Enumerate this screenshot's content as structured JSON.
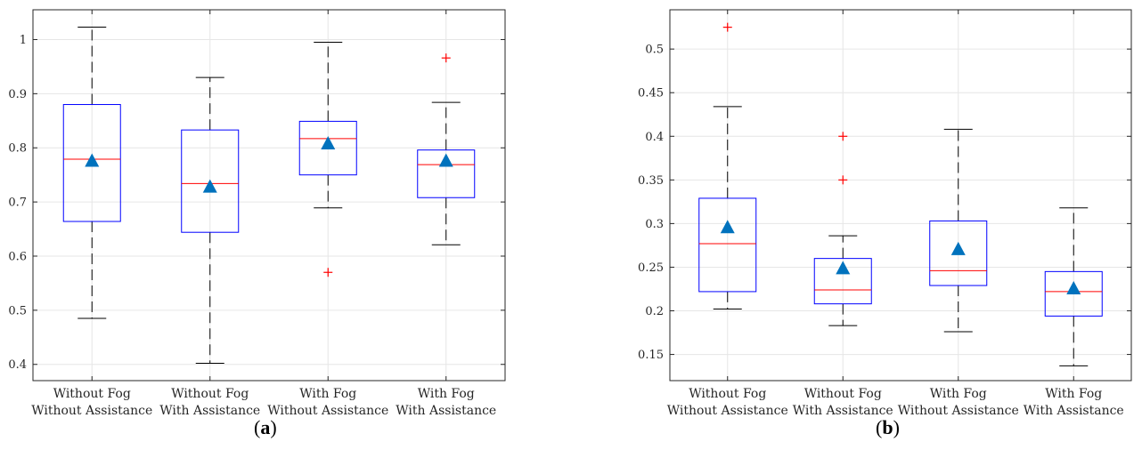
{
  "panels": [
    {
      "label_open": "(",
      "label_letter": "a",
      "label_close": ")"
    },
    {
      "label_open": "(",
      "label_letter": "b",
      "label_close": ")"
    }
  ],
  "colors": {
    "box": "#0000ff",
    "median": "#ff0000",
    "outlier": "#ff0000",
    "mean_marker": "#0072bd",
    "whisker": "#000000",
    "grid": "#e6e6e6",
    "axis": "#262626"
  },
  "chart_data": [
    {
      "type": "box",
      "grid": true,
      "ylim": [
        0.37,
        1.055
      ],
      "yticks": [
        0.4,
        0.5,
        0.6,
        0.7,
        0.8,
        0.9,
        1
      ],
      "ytick_labels": [
        "0.4",
        "0.5",
        "0.6",
        "0.7",
        "0.8",
        "0.9",
        "1"
      ],
      "categories": [
        [
          "Without Fog",
          "Without Assistance"
        ],
        [
          "Without Fog",
          "With Assistance"
        ],
        [
          "With Fog",
          "Without Assistance"
        ],
        [
          "With Fog",
          "With Assistance"
        ]
      ],
      "boxes": [
        {
          "whisker_low": 0.485,
          "q1": 0.664,
          "median": 0.779,
          "q3": 0.88,
          "whisker_high": 1.023,
          "mean": 0.775,
          "outliers": []
        },
        {
          "whisker_low": 0.402,
          "q1": 0.644,
          "median": 0.734,
          "q3": 0.833,
          "whisker_high": 0.93,
          "mean": 0.727,
          "outliers": []
        },
        {
          "whisker_low": 0.689,
          "q1": 0.75,
          "median": 0.817,
          "q3": 0.849,
          "whisker_high": 0.995,
          "mean": 0.807,
          "outliers": [
            0.57
          ]
        },
        {
          "whisker_low": 0.621,
          "q1": 0.708,
          "median": 0.769,
          "q3": 0.796,
          "whisker_high": 0.884,
          "mean": 0.775,
          "outliers": [
            0.966
          ]
        }
      ]
    },
    {
      "type": "box",
      "grid": true,
      "ylim": [
        0.12,
        0.545
      ],
      "yticks": [
        0.15,
        0.2,
        0.25,
        0.3,
        0.35,
        0.4,
        0.45,
        0.5
      ],
      "ytick_labels": [
        "0.15",
        "0.2",
        "0.25",
        "0.3",
        "0.35",
        "0.4",
        "0.45",
        "0.5"
      ],
      "categories": [
        [
          "Without Fog",
          "Without Assistance"
        ],
        [
          "Without Fog",
          "With Assistance"
        ],
        [
          "With Fog",
          "Without Assistance"
        ],
        [
          "With Fog",
          "With Assistance"
        ]
      ],
      "boxes": [
        {
          "whisker_low": 0.202,
          "q1": 0.222,
          "median": 0.277,
          "q3": 0.329,
          "whisker_high": 0.434,
          "mean": 0.295,
          "outliers": [
            0.525
          ]
        },
        {
          "whisker_low": 0.183,
          "q1": 0.208,
          "median": 0.224,
          "q3": 0.26,
          "whisker_high": 0.286,
          "mean": 0.248,
          "outliers": [
            0.35,
            0.4
          ]
        },
        {
          "whisker_low": 0.176,
          "q1": 0.229,
          "median": 0.246,
          "q3": 0.303,
          "whisker_high": 0.408,
          "mean": 0.27,
          "outliers": []
        },
        {
          "whisker_low": 0.137,
          "q1": 0.194,
          "median": 0.222,
          "q3": 0.245,
          "whisker_high": 0.318,
          "mean": 0.225,
          "outliers": []
        }
      ]
    }
  ]
}
